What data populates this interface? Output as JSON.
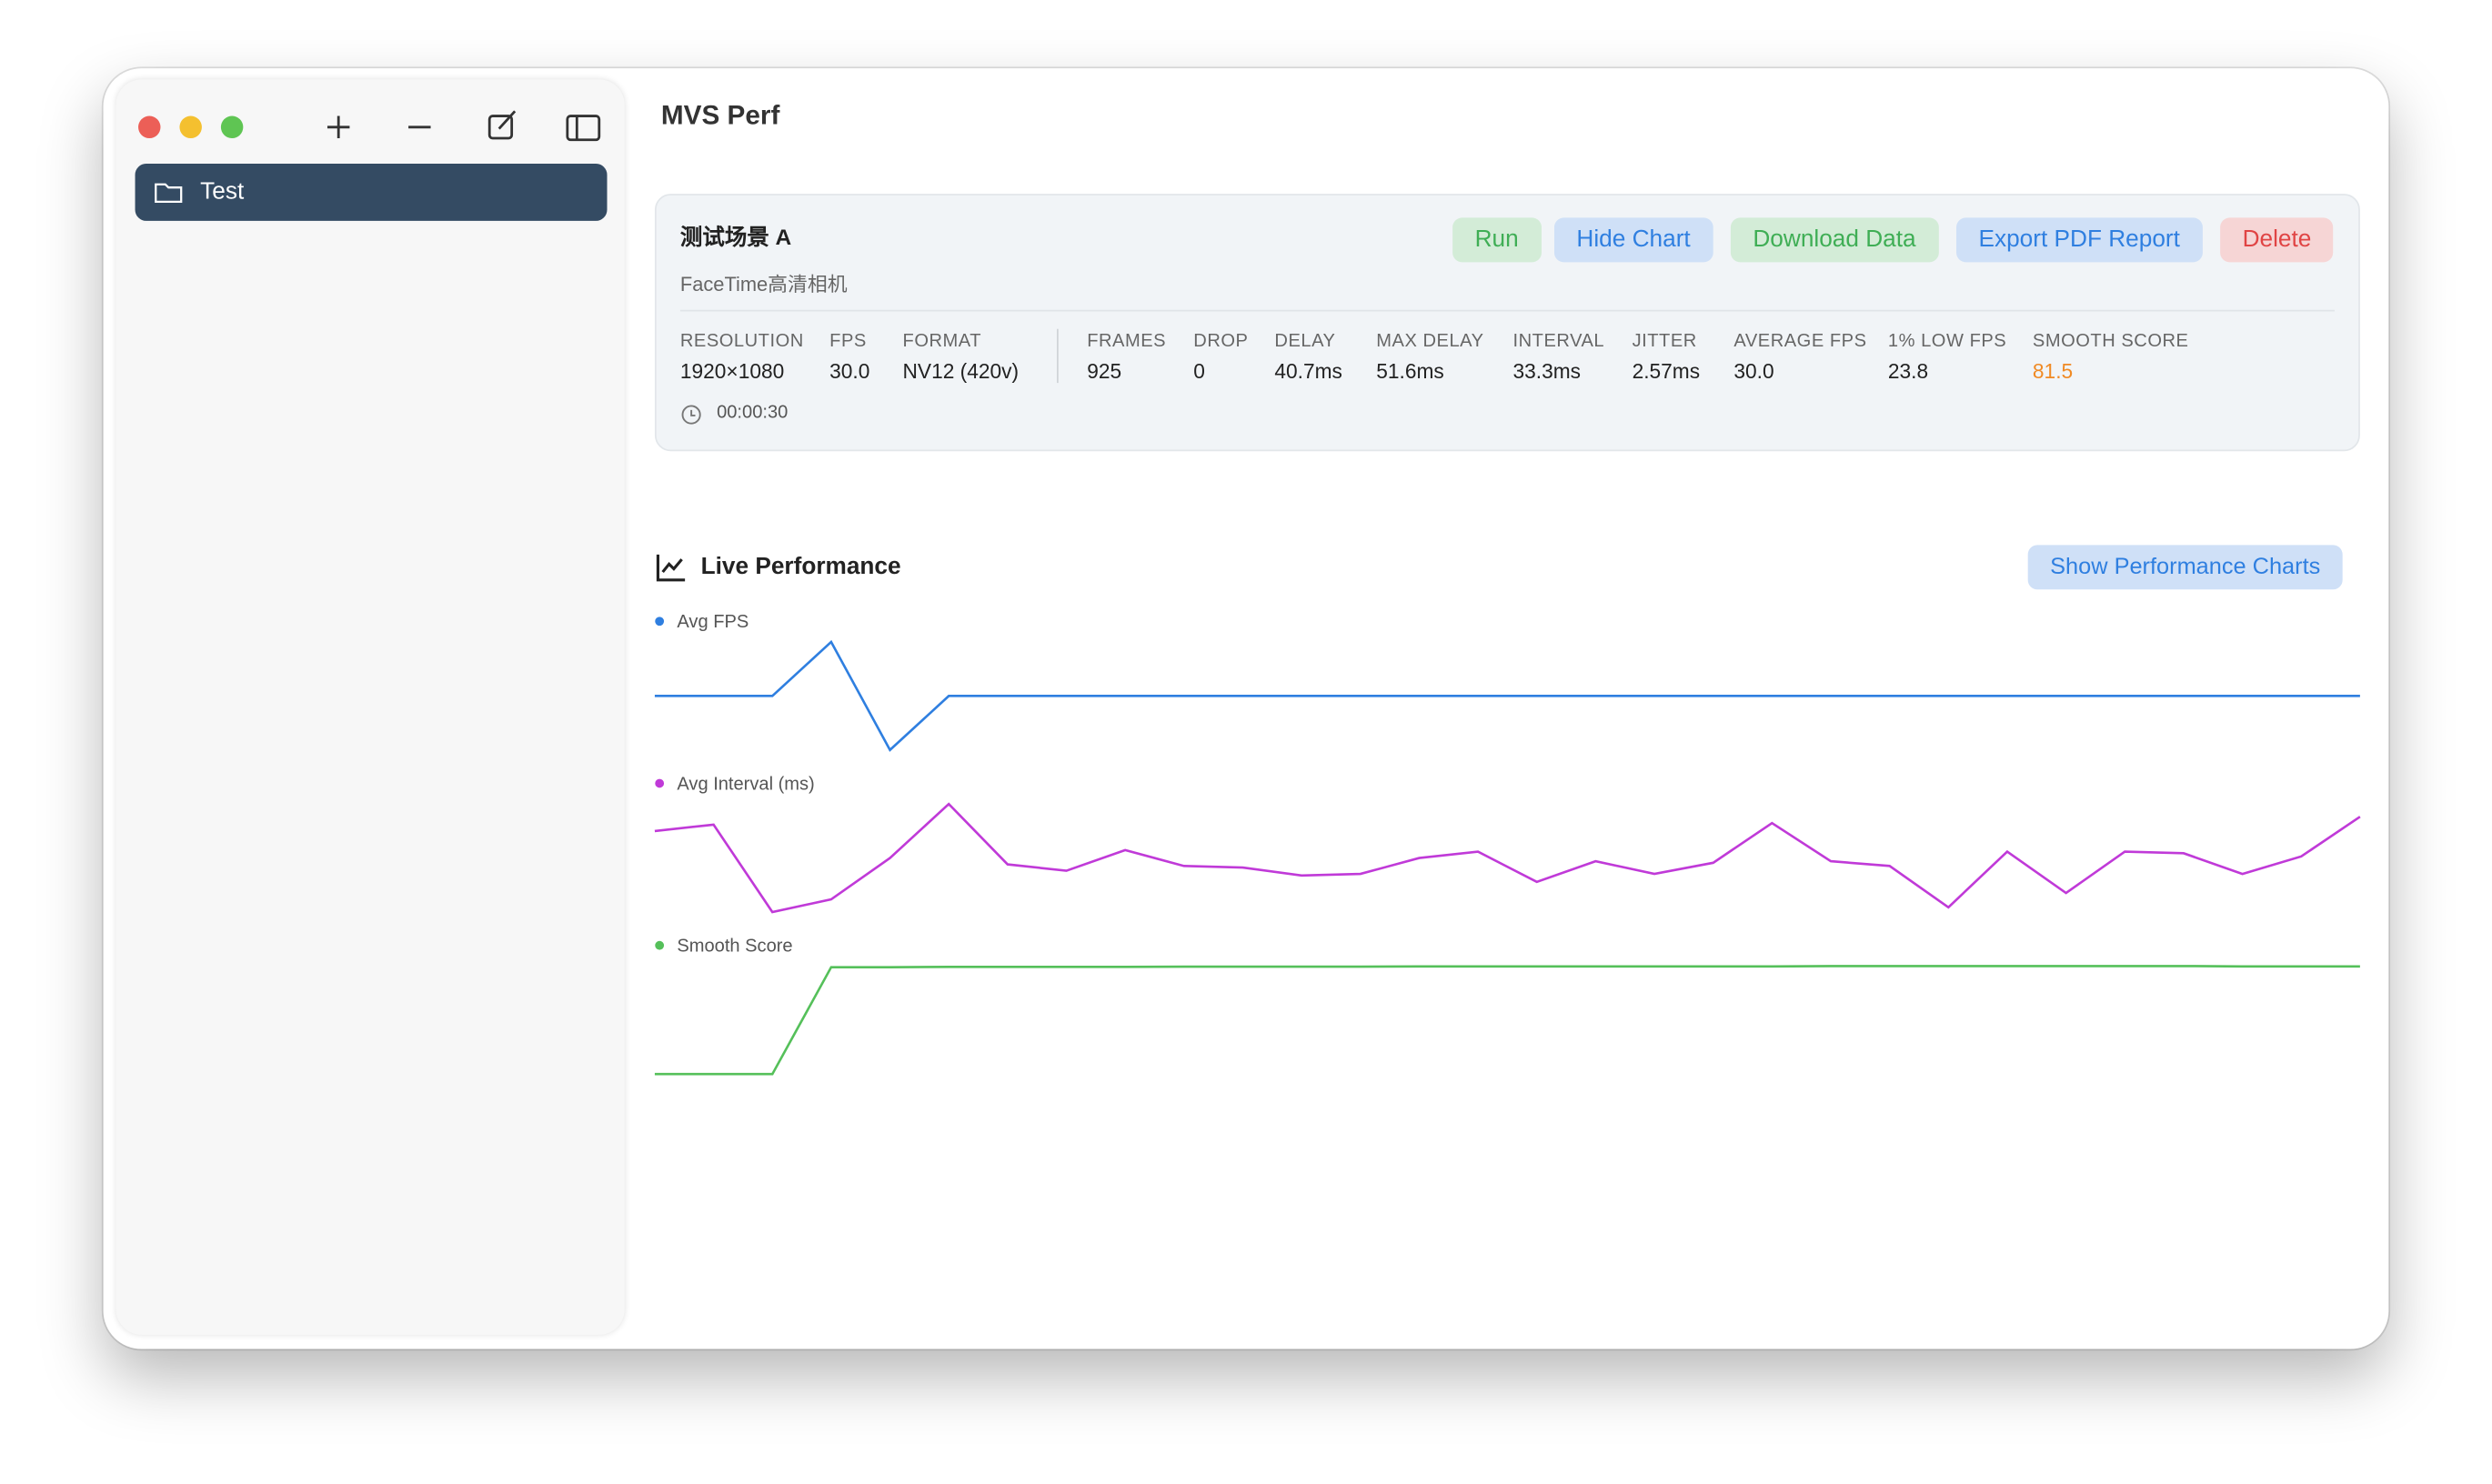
{
  "app": {
    "title": "MVS Perf",
    "sidebar": {
      "items": [
        "Test"
      ]
    }
  },
  "scenario": {
    "name": "测试场景 A",
    "device": "FaceTime高清相机",
    "buttons": [
      "Run",
      "Hide Chart",
      "Download Data",
      "Export PDF Report",
      "Delete"
    ],
    "stats": [
      {
        "label": "RESOLUTION",
        "value": "1920×1080"
      },
      {
        "label": "FPS",
        "value": "30.0"
      },
      {
        "label": "FORMAT",
        "value": "NV12 (420v)"
      },
      {
        "label": "FRAMES",
        "value": "925"
      },
      {
        "label": "DROP",
        "value": "0"
      },
      {
        "label": "DELAY",
        "value": "40.7ms"
      },
      {
        "label": "MAX DELAY",
        "value": "51.6ms"
      },
      {
        "label": "INTERVAL",
        "value": "33.3ms"
      },
      {
        "label": "JITTER",
        "value": "2.57ms"
      },
      {
        "label": "AVERAGE FPS",
        "value": "30.0"
      },
      {
        "label": "1% LOW FPS",
        "value": "23.8"
      },
      {
        "label": "SMOOTH SCORE",
        "value": "81.5"
      }
    ],
    "duration": "00:00:30"
  },
  "live": {
    "title": "Live Performance",
    "button": "Show Performance Charts",
    "series": [
      {
        "name": "Avg FPS",
        "color": "#2f7fe0",
        "values": [
          30,
          30,
          30,
          31,
          29,
          30,
          30,
          30,
          30,
          30,
          30,
          30,
          30,
          30,
          30,
          30,
          30,
          30,
          30,
          30,
          30,
          30,
          30,
          30,
          30,
          30,
          30,
          30,
          30,
          30
        ]
      },
      {
        "name": "Avg Interval (ms)",
        "color": "#c03ad8",
        "values": [
          33.64,
          33.72,
          32.62,
          32.78,
          33.3,
          33.98,
          33.22,
          33.14,
          33.4,
          33.2,
          33.18,
          33.08,
          33.1,
          33.3,
          33.38,
          33.0,
          33.26,
          33.1,
          33.24,
          33.74,
          33.26,
          33.2,
          32.68,
          33.38,
          32.86,
          33.38,
          33.36,
          33.1,
          33.32,
          33.82
        ]
      },
      {
        "name": "Smooth Score",
        "color": "#55c05a",
        "values": [
          62,
          62,
          62,
          99.6,
          99.6,
          99.7,
          99.7,
          99.7,
          99.7,
          99.8,
          99.8,
          99.8,
          99.8,
          99.9,
          99.9,
          99.9,
          99.9,
          99.9,
          99.9,
          99.9,
          100,
          100,
          100,
          100,
          100,
          100,
          100,
          99.9,
          99.9,
          99.9
        ]
      }
    ]
  }
}
